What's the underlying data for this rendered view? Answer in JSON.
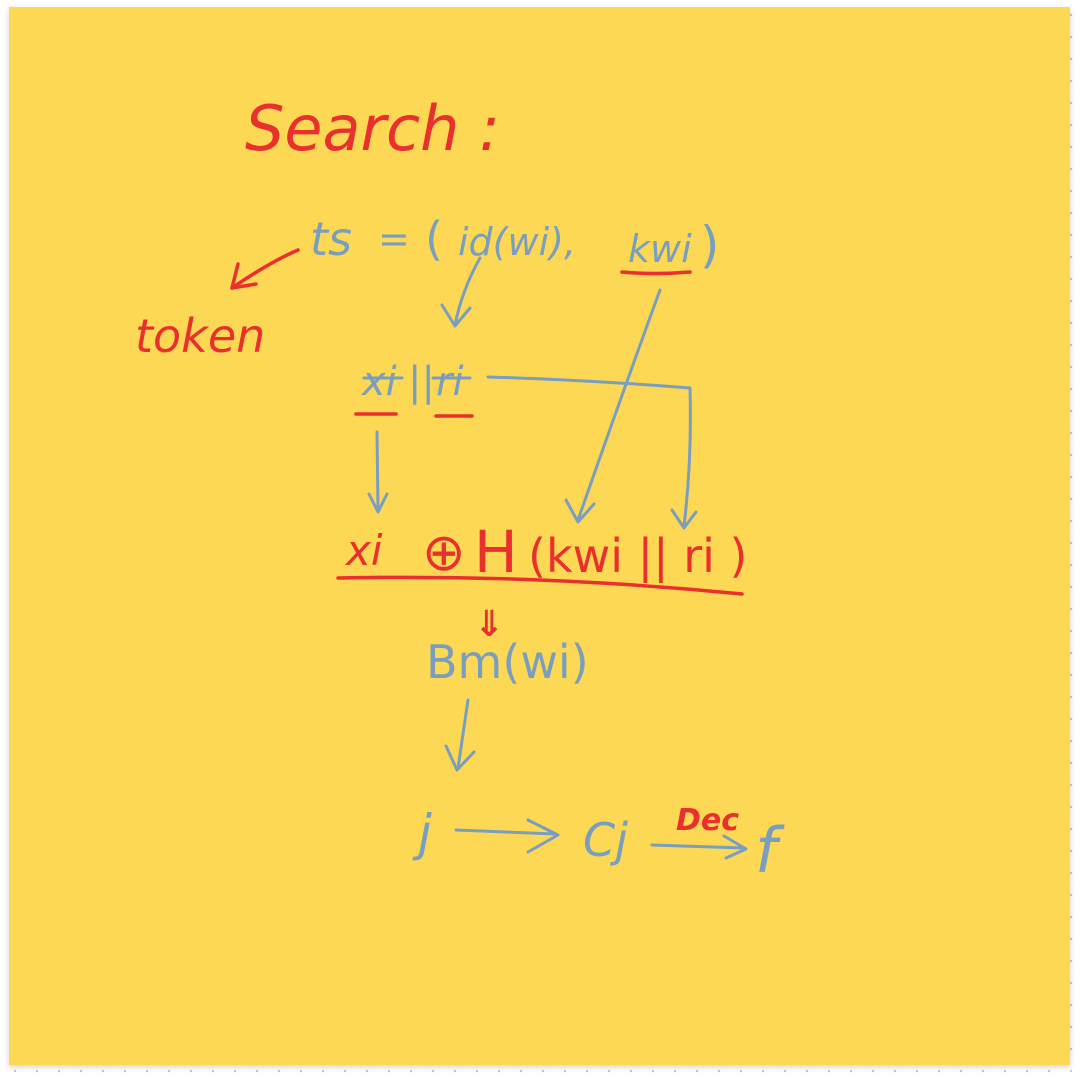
{
  "note": {
    "color": "#fdd855",
    "ink_blue": "#7a9fbe",
    "ink_red": "#ea2f2f"
  },
  "title": "Search :",
  "token_label": "token",
  "ts_left": "ts",
  "ts_eq": "=",
  "ts_open": "(",
  "ts_id": "id(wi),",
  "ts_kw": "kwi",
  "ts_close": ")",
  "xr_x": "xi",
  "xr_sep": "||",
  "xr_r": "ri",
  "expr_x": "xi",
  "expr_xor": "⊕",
  "expr_h": "H",
  "expr_args": "(kwi || ri )",
  "down_arrow": "⇓",
  "bm": "Bm(wi)",
  "j_label": "j",
  "cj_label": "Cj",
  "dec_label": "Dec",
  "f_label": "f"
}
